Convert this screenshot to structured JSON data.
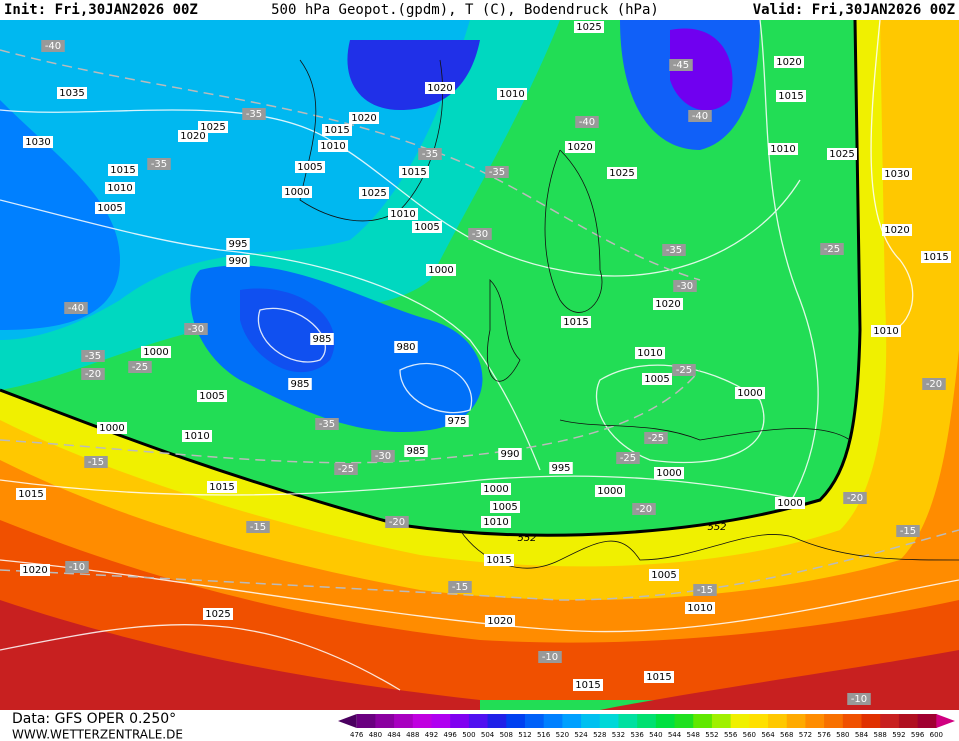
{
  "header": {
    "init": "Init: Fri,30JAN2026 00Z",
    "title": "500 hPa Geopot.(gpdm), T (C), Bodendruck (hPa)",
    "valid": "Valid: Fri,30JAN2026 00Z"
  },
  "footer": {
    "data": "Data: GFS OPER 0.250°",
    "site": "WWW.WETTERZENTRALE.DE"
  },
  "colorbar": {
    "ticks": [
      476,
      480,
      484,
      488,
      492,
      496,
      500,
      504,
      508,
      512,
      516,
      520,
      524,
      528,
      532,
      536,
      540,
      544,
      548,
      552,
      556,
      560,
      564,
      568,
      572,
      576,
      580,
      584,
      588,
      592,
      596,
      600
    ],
    "colors": [
      "#4b0060",
      "#6a0080",
      "#8a00a0",
      "#a800c0",
      "#c000e0",
      "#b000f0",
      "#8000f0",
      "#5010f0",
      "#2020e8",
      "#0040f0",
      "#0060f8",
      "#0080ff",
      "#00a0ff",
      "#00c0f0",
      "#00d8d8",
      "#00e0a0",
      "#00e070",
      "#00e040",
      "#20e020",
      "#60e800",
      "#a0f000",
      "#f0f000",
      "#ffe000",
      "#ffc800",
      "#ffaa00",
      "#ff8c00",
      "#f87000",
      "#f05000",
      "#e03000",
      "#c82020",
      "#b01020",
      "#a00030",
      "#d00080"
    ]
  },
  "isobar_labels": [
    "1035",
    "1030",
    "1025",
    "1020",
    "1015",
    "1010",
    "1005",
    "995",
    "990",
    "985",
    "985",
    "980",
    "975",
    "985",
    "990",
    "995",
    "1000",
    "1005",
    "1010",
    "1000",
    "1015",
    "1015",
    "1020",
    "1025",
    "1020",
    "1015",
    "1015",
    "1010",
    "1005",
    "1000",
    "1005",
    "1010",
    "1015",
    "1000",
    "1000",
    "1000",
    "1000",
    "1005",
    "1010",
    "1015",
    "1020",
    "1025",
    "1020",
    "1010",
    "1020",
    "1020",
    "1015",
    "1010",
    "1005",
    "1000",
    "1025",
    "1015",
    "1010",
    "1005",
    "1000",
    "1025",
    "1020",
    "1015",
    "1010",
    "1025",
    "1030",
    "1020",
    "1015",
    "1010"
  ],
  "temperature_labels": [
    "-40",
    "-35",
    "-35",
    "-40",
    "-35",
    "-20",
    "-25",
    "-30",
    "-35",
    "-30",
    "-25",
    "-20",
    "-15",
    "-15",
    "-10",
    "-15",
    "-10",
    "-10",
    "-15",
    "-15",
    "-20",
    "-20",
    "-25",
    "-25",
    "-25",
    "-30",
    "-35",
    "-30",
    "-35",
    "-40",
    "-35",
    "-40",
    "-45",
    "-25",
    "-20"
  ],
  "contour_labels": [
    "552",
    "552"
  ]
}
